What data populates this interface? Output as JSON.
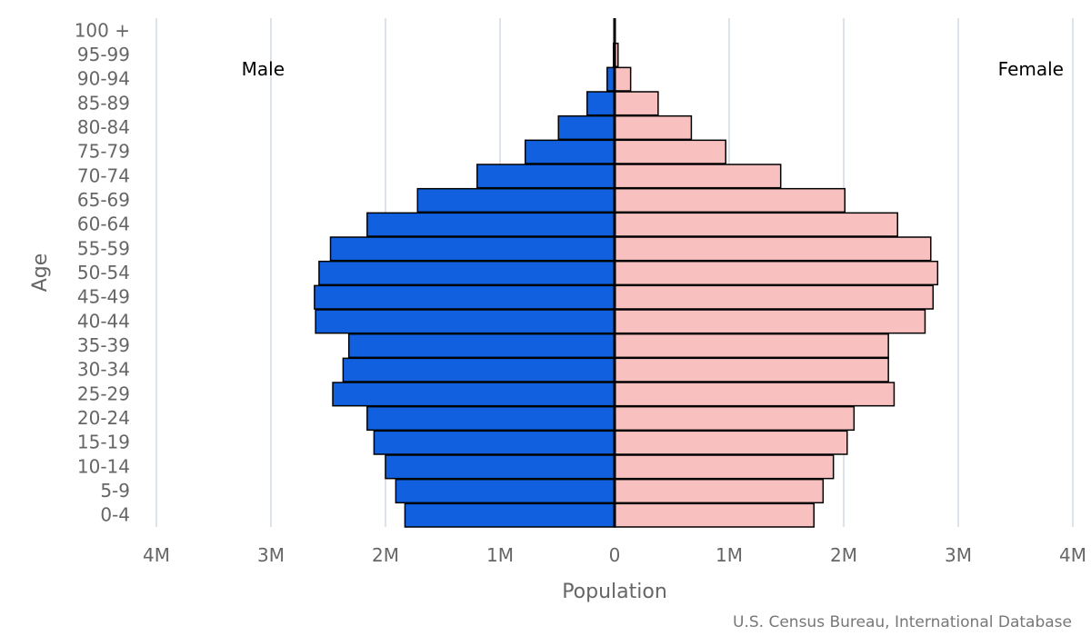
{
  "chart_data": {
    "type": "bar",
    "orientation": "horizontal",
    "categories": [
      "0-4",
      "5-9",
      "10-14",
      "15-19",
      "20-24",
      "25-29",
      "30-34",
      "35-39",
      "40-44",
      "45-49",
      "50-54",
      "55-59",
      "60-64",
      "65-69",
      "70-74",
      "75-79",
      "80-84",
      "85-89",
      "90-94",
      "95-99",
      "100 +"
    ],
    "series": [
      {
        "name": "Male",
        "color": "#1060e0",
        "values": [
          1830000,
          1910000,
          2000000,
          2100000,
          2160000,
          2460000,
          2370000,
          2320000,
          2610000,
          2620000,
          2580000,
          2480000,
          2160000,
          1720000,
          1200000,
          780000,
          490000,
          240000,
          65000,
          10000,
          1000
        ]
      },
      {
        "name": "Female",
        "color": "#f9c0c0",
        "values": [
          1740000,
          1820000,
          1910000,
          2030000,
          2090000,
          2440000,
          2390000,
          2390000,
          2710000,
          2780000,
          2820000,
          2760000,
          2470000,
          2010000,
          1450000,
          970000,
          670000,
          380000,
          140000,
          30000,
          6000
        ]
      }
    ],
    "xlabel": "Population",
    "ylabel": "Age",
    "xlim": [
      -4000000,
      4000000
    ],
    "x_ticks": [
      -4000000,
      -3000000,
      -2000000,
      -1000000,
      0,
      1000000,
      2000000,
      3000000,
      4000000
    ],
    "x_tick_labels": [
      "4M",
      "3M",
      "2M",
      "1M",
      "0",
      "1M",
      "2M",
      "3M",
      "4M"
    ],
    "grid": true,
    "credit": "U.S. Census Bureau, International Database"
  }
}
